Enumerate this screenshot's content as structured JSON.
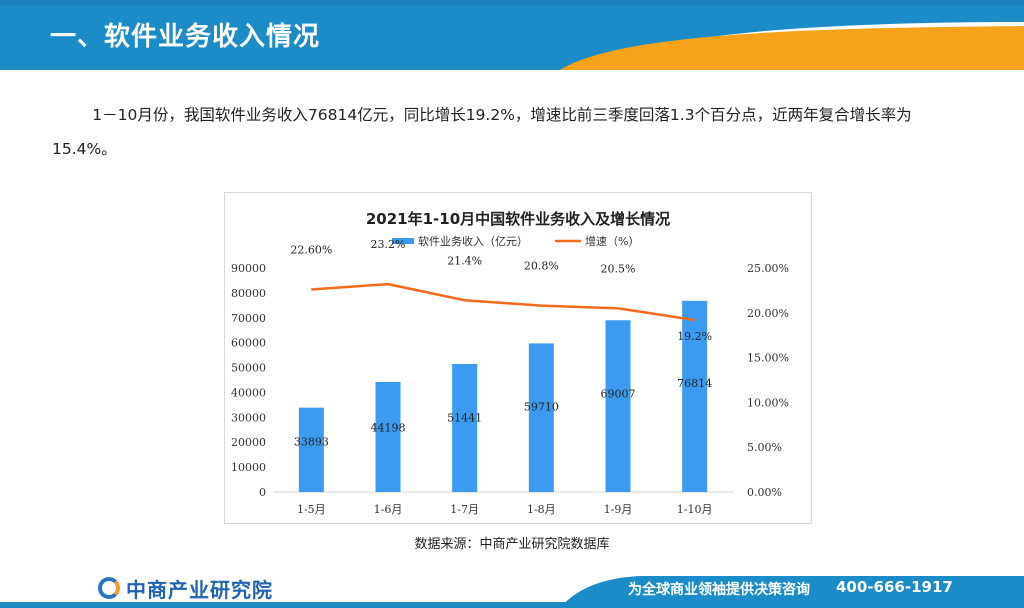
{
  "header": {
    "title": "一、软件业务收入情况",
    "bg_color": "#1b8cc7",
    "accent_color": "#f7a21b"
  },
  "intro": {
    "text": "1－10月份，我国软件业务收入76814亿元，同比增长19.2%，增速比前三季度回落1.3个百分点，近两年复合增长率为15.4%。"
  },
  "chart_data": {
    "type": "bar",
    "title": "2021年1-10月中国软件业务收入及增长情况",
    "categories": [
      "1-5月",
      "1-6月",
      "1-7月",
      "1-8月",
      "1-9月",
      "1-10月"
    ],
    "series": [
      {
        "name": "软件业务收入（亿元）",
        "type": "bar",
        "axis": "left",
        "color": "#3c9bf0",
        "values": [
          33893,
          44198,
          51441,
          59710,
          69007,
          76814
        ],
        "labels": [
          "33893",
          "44198",
          "51441",
          "59710",
          "69007",
          "76814"
        ]
      },
      {
        "name": "增速（%）",
        "type": "line",
        "axis": "right",
        "color": "#f26b1d",
        "values": [
          22.6,
          23.2,
          21.4,
          20.8,
          20.5,
          19.2
        ],
        "labels": [
          "22.60%",
          "23.2%",
          "21.4%",
          "20.8%",
          "20.5%",
          "19.2%"
        ]
      }
    ],
    "y_left": {
      "min": 0,
      "max": 90000,
      "ticks": [
        "0",
        "10000",
        "20000",
        "30000",
        "40000",
        "50000",
        "60000",
        "70000",
        "80000",
        "90000"
      ]
    },
    "y_right": {
      "min": 0,
      "max": 25,
      "ticks": [
        "0.00%",
        "5.00%",
        "10.00%",
        "15.00%",
        "20.00%",
        "25.00%"
      ]
    },
    "legend_position": "top",
    "grid": false
  },
  "source": {
    "text": "数据来源：中商产业研究院数据库"
  },
  "footer": {
    "logo_text": "中商产业研究院",
    "slogan": "为全球商业领袖提供决策咨询",
    "phone": "400-666-1917",
    "bg_color": "#1b8cc7"
  }
}
